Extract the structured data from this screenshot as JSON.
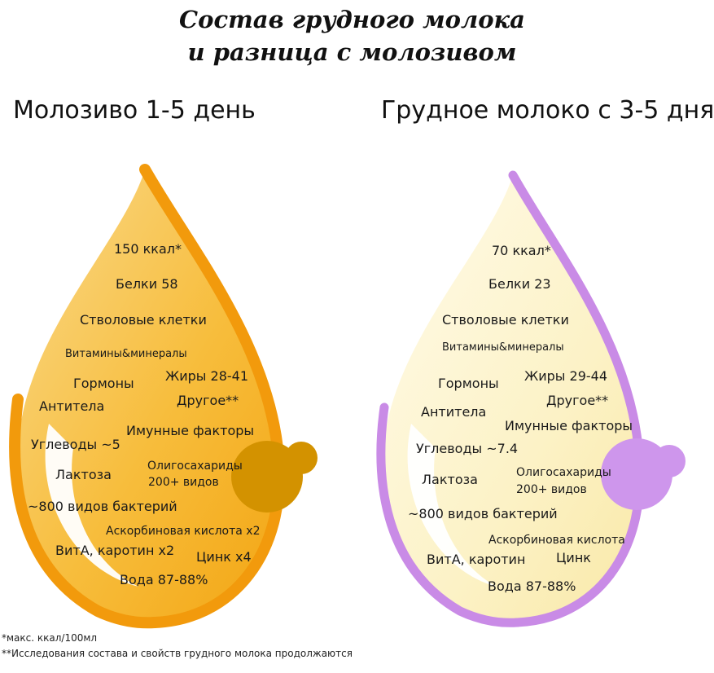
{
  "title": {
    "line1": "Состав грудного молока",
    "line2": "и разница с молозивом"
  },
  "colostrum": {
    "heading": "Молозиво 1-5 день",
    "labels": {
      "kcal": "150 ккал*",
      "protein": "Белки 58",
      "stem_cells": "Стволовые клетки",
      "vitamins": "Витамины&минералы",
      "hormones": "Гормоны",
      "fats": "Жиры 28-41",
      "antibodies": "Антитела",
      "other": "Другое**",
      "immune": "Имунные факторы",
      "carbs": "Углеводы ~5",
      "oligo_1": "Олигосахариды",
      "oligo_2": "200+ видов",
      "lactose": "Лактоза",
      "bacteria": "~800 видов бактерий",
      "ascorbic": "Аскорбиновая кислота х2",
      "vita": "ВитА, каротин х2",
      "zinc": "Цинк х4",
      "water": "Вода 87-88%"
    },
    "colors": {
      "fill": "#F6B21E",
      "stroke": "#F29A0C",
      "nipple": "#D39200"
    }
  },
  "milk": {
    "heading": "Грудное молоко с 3-5 дня",
    "labels": {
      "kcal": "70 ккал*",
      "protein": "Белки 23",
      "stem_cells": "Стволовые клетки",
      "vitamins": "Витамины&минералы",
      "hormones": "Гормоны",
      "fats": "Жиры 29-44",
      "antibodies": "Антитела",
      "other": "Другое**",
      "immune": "Имунные факторы",
      "carbs": "Углеводы ~7.4",
      "oligo_1": "Олигосахариды",
      "oligo_2": "200+ видов",
      "lactose": "Лактоза",
      "bacteria": "~800 видов бактерий",
      "ascorbic": "Аскорбиновая кислота",
      "vita": "ВитА, каротин",
      "zinc": "Цинк",
      "water": "Вода 87-88%"
    },
    "colors": {
      "fill": "#FBF1C0",
      "stroke": "#C98BE6",
      "nipple": "#CE96EC"
    }
  },
  "footnotes": {
    "f1": "*макс. ккал/100мл",
    "f2": "**Исследования состава и свойств грудного молока продолжаются"
  }
}
